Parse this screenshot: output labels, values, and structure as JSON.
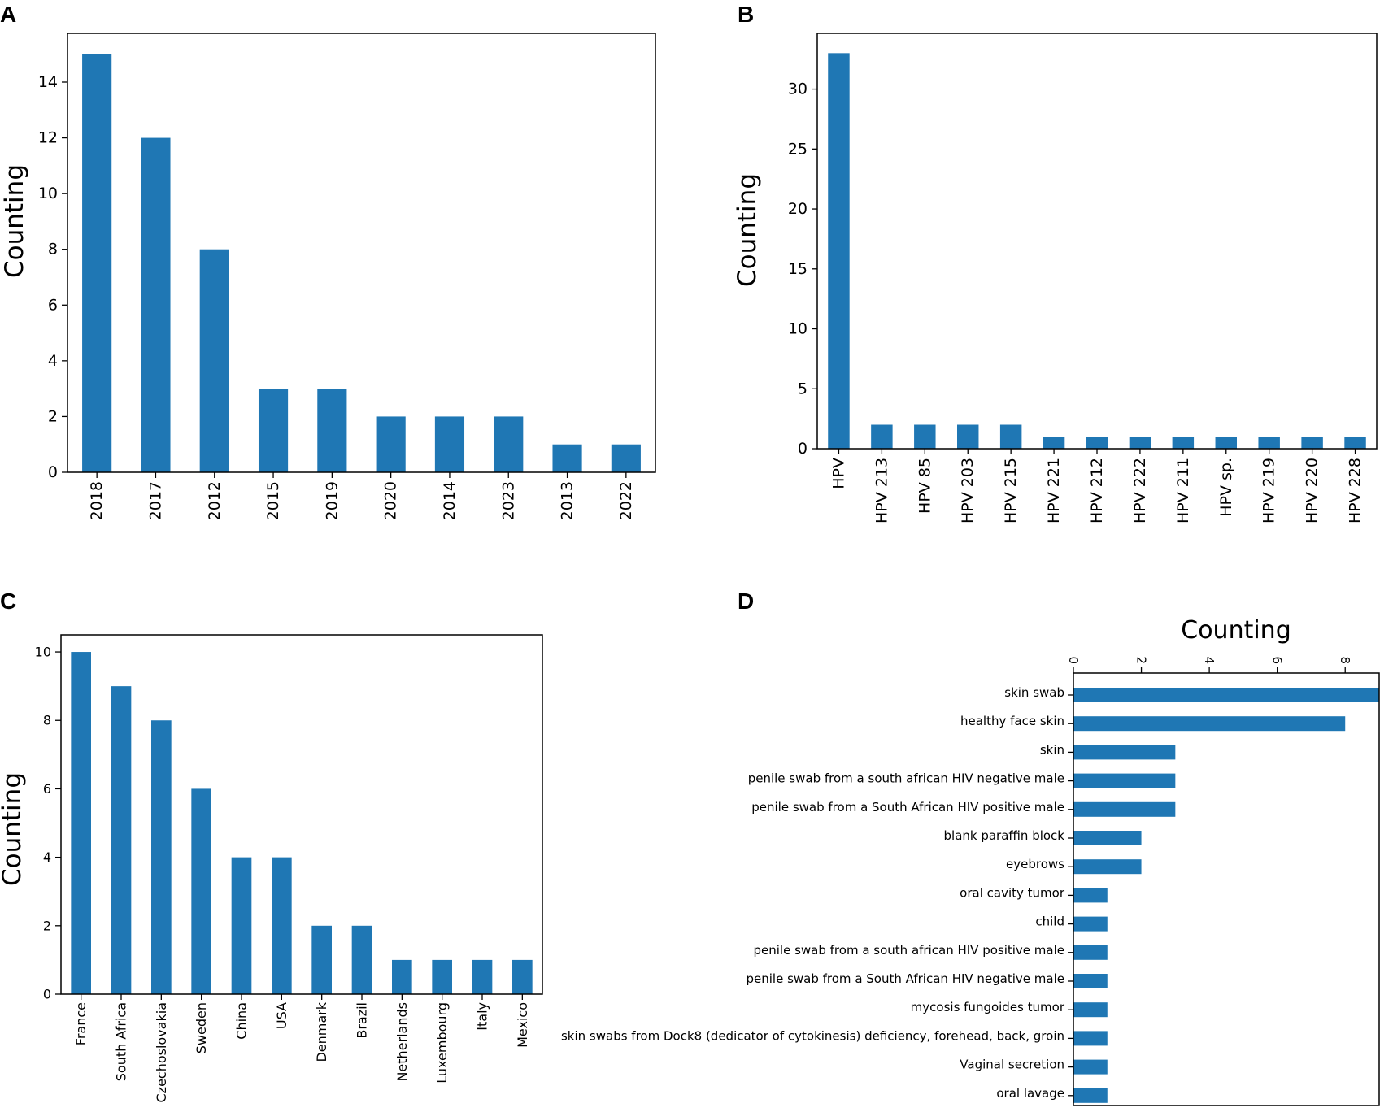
{
  "figure": {
    "panel_labels": [
      "A",
      "B",
      "C",
      "D"
    ],
    "bar_color": "#1f77b4"
  },
  "chart_data": [
    {
      "type": "bar",
      "panel": "A",
      "title": "",
      "xlabel": "",
      "ylabel": "Counting",
      "categories": [
        "2018",
        "2017",
        "2012",
        "2015",
        "2019",
        "2020",
        "2014",
        "2023",
        "2013",
        "2022"
      ],
      "values": [
        15,
        12,
        8,
        3,
        3,
        2,
        2,
        2,
        1,
        1
      ],
      "ylim": [
        0,
        15.75
      ],
      "yticks": [
        0,
        2,
        4,
        6,
        8,
        10,
        12,
        14
      ],
      "orientation": "vertical",
      "tick_rotation": 90,
      "grid": false
    },
    {
      "type": "bar",
      "panel": "B",
      "title": "",
      "xlabel": "",
      "ylabel": "Counting",
      "categories": [
        "HPV",
        "HPV 213",
        "HPV 85",
        "HPV 203",
        "HPV 215",
        "HPV 221",
        "HPV 212",
        "HPV 222",
        "HPV 211",
        "HPV sp.",
        "HPV 219",
        "HPV 220",
        "HPV 228"
      ],
      "values": [
        33,
        2,
        2,
        2,
        2,
        1,
        1,
        1,
        1,
        1,
        1,
        1,
        1
      ],
      "ylim": [
        0,
        34.65
      ],
      "yticks": [
        0,
        5,
        10,
        15,
        20,
        25,
        30
      ],
      "orientation": "vertical",
      "tick_rotation": 90,
      "grid": false
    },
    {
      "type": "bar",
      "panel": "C",
      "title": "",
      "xlabel": "",
      "ylabel": "Counting",
      "categories": [
        "France",
        "South Africa",
        "Czechoslovakia",
        "Sweden",
        "China",
        "USA",
        "Denmark",
        "Brazil",
        "Netherlands",
        "Luxembourg",
        "Italy",
        "Mexico"
      ],
      "values": [
        10,
        9,
        8,
        6,
        4,
        4,
        2,
        2,
        1,
        1,
        1,
        1
      ],
      "ylim": [
        0,
        10.5
      ],
      "yticks": [
        0,
        2,
        4,
        6,
        8,
        10
      ],
      "orientation": "vertical",
      "tick_rotation": 90,
      "grid": false
    },
    {
      "type": "bar",
      "panel": "D",
      "title": "Counting",
      "xlabel": "",
      "ylabel": "",
      "categories": [
        "skin swab",
        "healthy face skin",
        "skin",
        "penile swab from a south african HIV negative male",
        "penile swab from a South African HIV positive male",
        "blank paraffin block",
        "eyebrows",
        "oral cavity tumor",
        "child",
        "penile swab from a south african HIV positive male",
        "penile swab from a South African HIV negative male",
        "mycosis fungoides tumor",
        "skin swabs from Dock8 (dedicator of cytokinesis) deficiency, forehead, back, groin",
        "Vaginal secretion",
        "oral lavage"
      ],
      "values": [
        9,
        8,
        3,
        3,
        3,
        2,
        2,
        1,
        1,
        1,
        1,
        1,
        1,
        1,
        1
      ],
      "xlim": [
        0,
        9
      ],
      "xticks": [
        0,
        2,
        4,
        6,
        8
      ],
      "orientation": "horizontal",
      "axis_position": "top",
      "tick_rotation": 90,
      "grid": false
    }
  ]
}
